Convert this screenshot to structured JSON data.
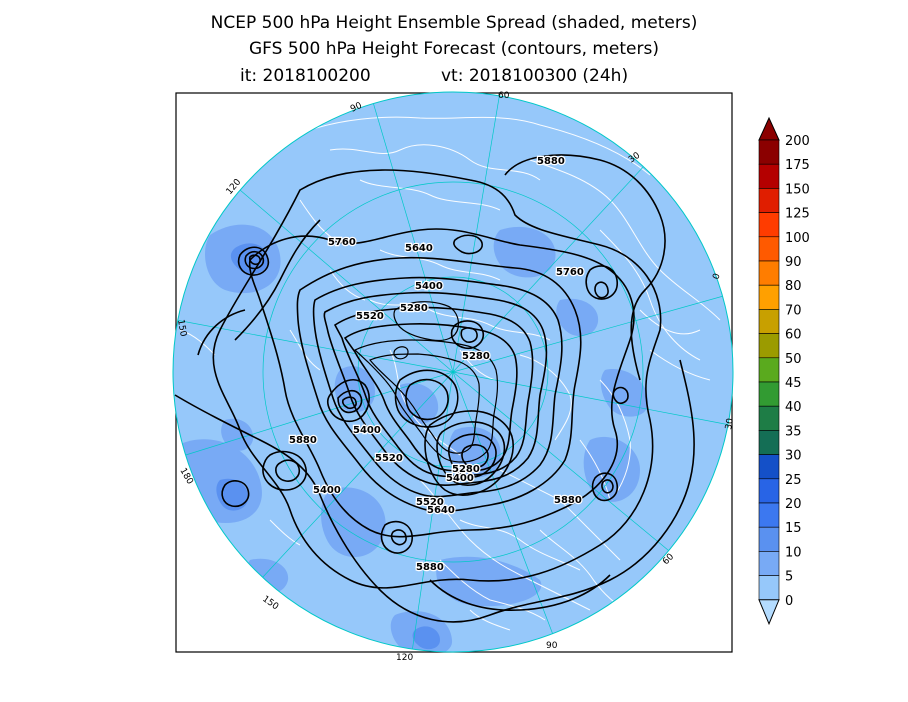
{
  "title": {
    "line1": "NCEP 500 hPa Height Ensemble Spread (shaded, meters)",
    "line2": "GFS 500 hPa Height Forecast (contours, meters)",
    "init": "it: 2018100200",
    "valid": "vt: 2018100300 (24h)"
  },
  "colorbar": {
    "levels": [
      "200",
      "175",
      "150",
      "125",
      "100",
      "90",
      "80",
      "70",
      "60",
      "50",
      "45",
      "40",
      "35",
      "30",
      "25",
      "20",
      "15",
      "10",
      "5",
      "0"
    ],
    "colors": [
      "#8b0000",
      "#b40000",
      "#e01e00",
      "#ff3c00",
      "#ff5a00",
      "#ff7d00",
      "#ffa000",
      "#c8a000",
      "#9b9b00",
      "#5aaa1e",
      "#329b32",
      "#1e7d46",
      "#146e55",
      "#1450c8",
      "#2864e6",
      "#3c78f0",
      "#5a91f0",
      "#78aaf5",
      "#96c8fa",
      "#b4dcff"
    ]
  },
  "meridians": [
    "60",
    "30",
    "0",
    "30",
    "60",
    "90",
    "120",
    "150",
    "180",
    "150",
    "120",
    "90"
  ],
  "contour_labels": [
    "5880",
    "5760",
    "5640",
    "5400",
    "5280",
    "5520",
    "5280",
    "5400",
    "5880",
    "5400",
    "5520",
    "5280",
    "5400",
    "5880",
    "5520",
    "5640",
    "5880",
    "5760"
  ]
}
